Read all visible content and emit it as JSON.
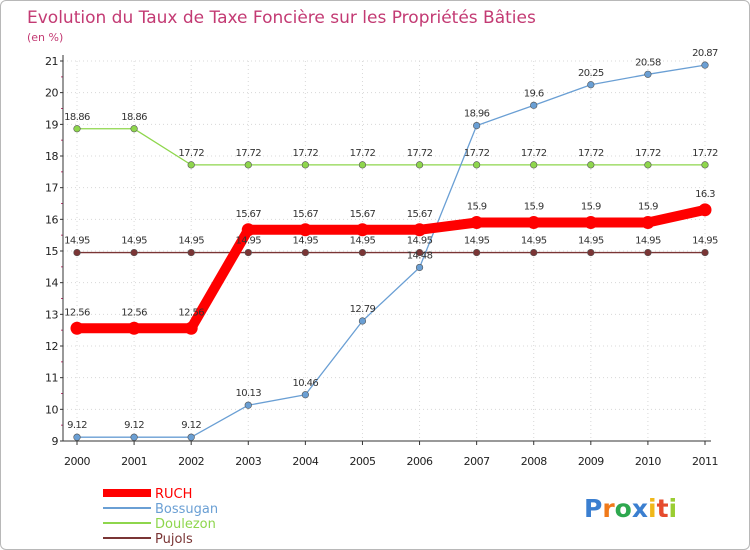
{
  "chart_data": {
    "type": "line",
    "title": "Evolution du Taux de Taxe Foncière sur les Propriétés Bâties",
    "subtitle": "(en %)",
    "xlabel": "",
    "ylabel": "",
    "x": [
      "2000",
      "2001",
      "2002",
      "2003",
      "2004",
      "2005",
      "2006",
      "2007",
      "2008",
      "2009",
      "2010",
      "2011"
    ],
    "ylim": [
      9,
      21
    ],
    "yticks": [
      "9",
      "10",
      "11",
      "12",
      "13",
      "14",
      "15",
      "16",
      "17",
      "18",
      "19",
      "20",
      "21"
    ],
    "grid": true,
    "legend_position": "bottom-left",
    "series": [
      {
        "name": "RUCH",
        "color": "#ff0000",
        "values": [
          12.56,
          12.56,
          12.56,
          15.67,
          15.67,
          15.67,
          15.67,
          15.9,
          15.9,
          15.9,
          15.9,
          16.3
        ],
        "labels": [
          "12.56",
          "12.56",
          "12.56",
          "15.67",
          "15.67",
          "15.67",
          "15.67",
          "15.9",
          "15.9",
          "15.9",
          "15.9",
          "16.3"
        ]
      },
      {
        "name": "Bossugan",
        "color": "#6a9fd4",
        "values": [
          9.12,
          9.12,
          9.12,
          10.13,
          10.46,
          12.79,
          14.48,
          18.96,
          19.6,
          20.25,
          20.58,
          20.87
        ],
        "labels": [
          "9.12",
          "9.12",
          "9.12",
          "10.13",
          "10.46",
          "12.79",
          "14.48",
          "18.96",
          "19.6",
          "20.25",
          "20.58",
          "20.87"
        ]
      },
      {
        "name": "Doulezon",
        "color": "#8ed64c",
        "values": [
          18.86,
          18.86,
          17.72,
          17.72,
          17.72,
          17.72,
          17.72,
          17.72,
          17.72,
          17.72,
          17.72,
          17.72
        ],
        "labels": [
          "18.86",
          "18.86",
          "17.72",
          "17.72",
          "17.72",
          "17.72",
          "17.72",
          "17.72",
          "17.72",
          "17.72",
          "17.72",
          "17.72"
        ]
      },
      {
        "name": "Pujols",
        "color": "#7a3535",
        "values": [
          14.95,
          14.95,
          14.95,
          14.95,
          14.95,
          14.95,
          14.95,
          14.95,
          14.95,
          14.95,
          14.95,
          14.95
        ],
        "labels": [
          "14.95",
          "14.95",
          "14.95",
          "14.95",
          "14.95",
          "14.95",
          "14.95",
          "14.95",
          "14.95",
          "14.95",
          "14.95",
          "14.95"
        ]
      }
    ]
  },
  "logo": {
    "letters": [
      "P",
      "r",
      "o",
      "x",
      "i",
      "t",
      "i"
    ],
    "colors": [
      "#3b7fd0",
      "#f07a1a",
      "#2ea84f",
      "#3b7fd0",
      "#f0b81a",
      "#e64b2e",
      "#9acd32"
    ]
  }
}
